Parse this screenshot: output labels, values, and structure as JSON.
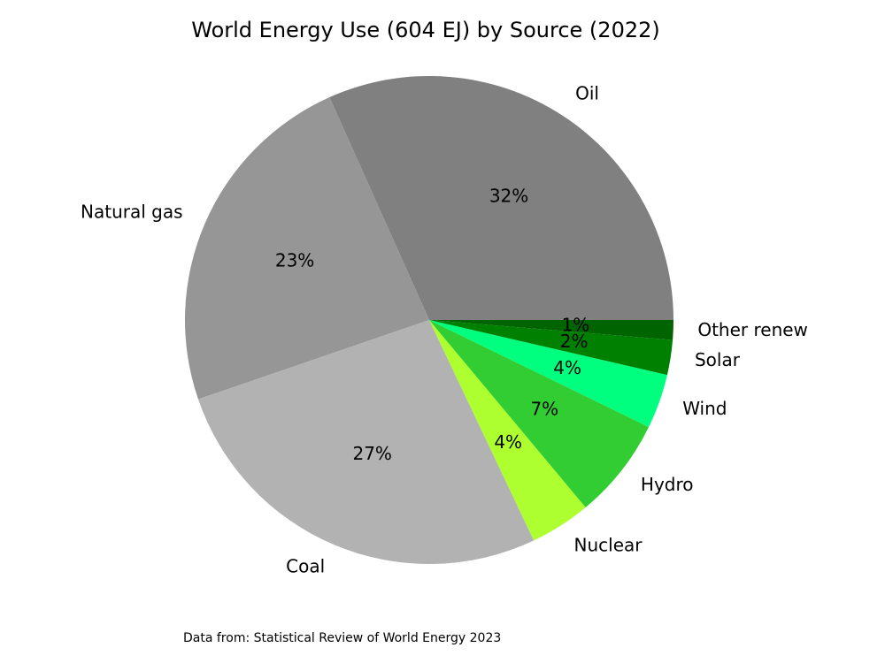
{
  "chart_data": {
    "type": "pie",
    "title": "World Energy Use (604 EJ) by Source (2022)",
    "note": "Data from: Statistical Review of World Energy 2023",
    "start_angle_deg": 0,
    "direction": "counterclockwise",
    "slices": [
      {
        "label": "Oil",
        "value": 31.6,
        "pct_label": "32%",
        "color": "#808080"
      },
      {
        "label": "Natural gas",
        "value": 23.5,
        "pct_label": "23%",
        "color": "#969696"
      },
      {
        "label": "Coal",
        "value": 26.7,
        "pct_label": "27%",
        "color": "#b2b2b2"
      },
      {
        "label": "Nuclear",
        "value": 4.0,
        "pct_label": "4%",
        "color": "#adff2f"
      },
      {
        "label": "Hydro",
        "value": 6.7,
        "pct_label": "7%",
        "color": "#32cd32"
      },
      {
        "label": "Wind",
        "value": 3.6,
        "pct_label": "4%",
        "color": "#00ff7f"
      },
      {
        "label": "Solar",
        "value": 2.3,
        "pct_label": "2%",
        "color": "#008000"
      },
      {
        "label": "Other renew",
        "value": 1.3,
        "pct_label": "1%",
        "color": "#006400"
      }
    ]
  }
}
